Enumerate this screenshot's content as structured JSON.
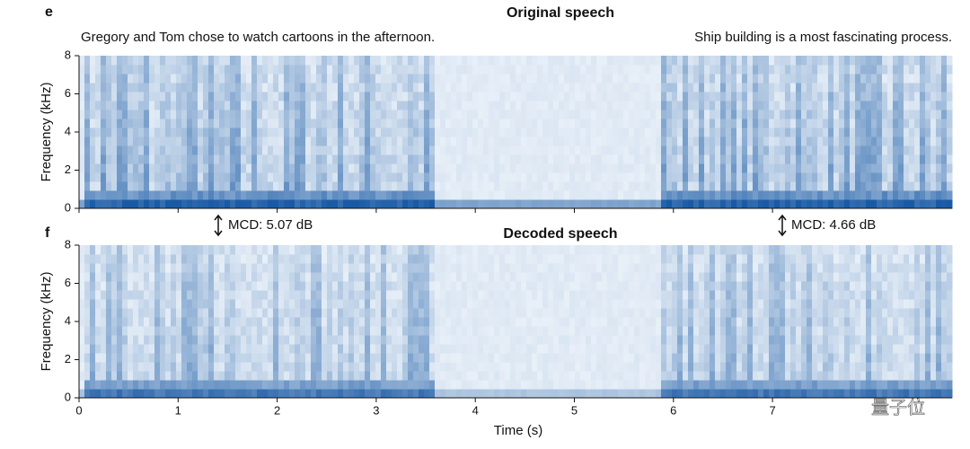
{
  "panels": [
    {
      "label": "e",
      "title": "Original speech",
      "ylabel": "Frequency (kHz)",
      "yticks": [
        0,
        2,
        4,
        6,
        8
      ],
      "sentences": [
        "Gregory and Tom chose to watch cartoons in the afternoon.",
        "Ship building is a most fascinating process."
      ]
    },
    {
      "label": "f",
      "title": "Decoded speech",
      "ylabel": "Frequency (kHz)",
      "yticks": [
        0,
        2,
        4,
        6,
        8
      ]
    }
  ],
  "annotations": [
    "MCD: 5.07 dB",
    "MCD: 4.66 dB"
  ],
  "xaxis": {
    "label": "Time (s)",
    "ticks": [
      0,
      1,
      2,
      3,
      4,
      5,
      6,
      7
    ]
  },
  "watermark": "量子位"
}
